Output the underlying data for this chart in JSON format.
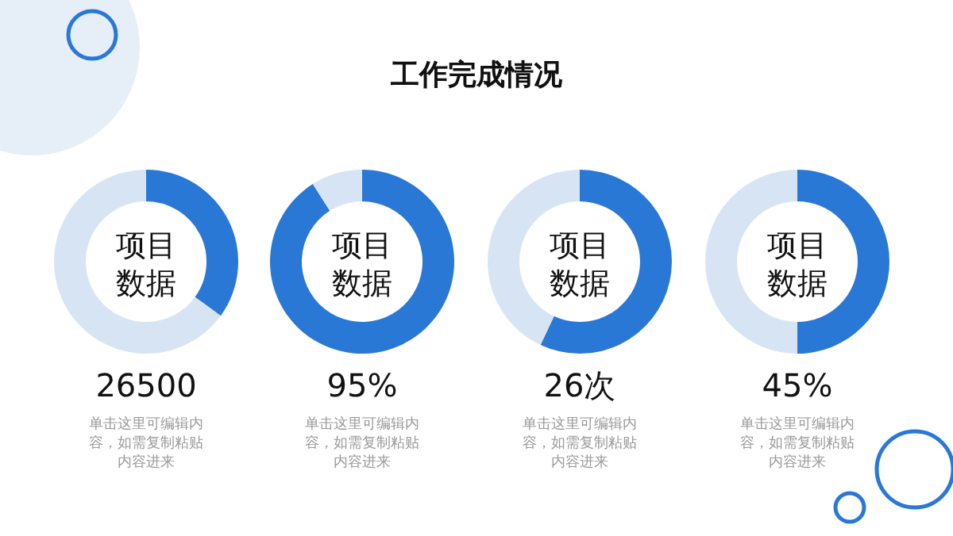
{
  "chart_data": [
    {
      "type": "donut",
      "title": "工作完成情况",
      "subtitle": "项目数据",
      "categories": [
        null,
        null
      ],
      "values": [
        35,
        65
      ],
      "colors": [
        "#2a78d6",
        "#d7e4f4"
      ],
      "annotations": [
        "26500",
        "单击这里可编辑内容，如需复制粘贴内容进来"
      ]
    },
    {
      "type": "donut",
      "subtitle": "项目数据",
      "categories": [
        null,
        null
      ],
      "values": [
        91,
        9
      ],
      "colors": [
        "#2a78d6",
        "#d7e4f4"
      ],
      "annotations": [
        "95%",
        "单击这里可编辑内容，如需复制粘贴内容进来"
      ]
    },
    {
      "type": "donut",
      "subtitle": "项目数据",
      "categories": [
        null,
        null
      ],
      "values": [
        57,
        43
      ],
      "colors": [
        "#2a78d6",
        "#d7e4f4"
      ],
      "annotations": [
        "26次",
        "单击这里可编辑内容，如需复制粘贴内容进来"
      ]
    },
    {
      "type": "donut",
      "subtitle": "项目数据",
      "categories": [
        null,
        null
      ],
      "values": [
        50,
        50
      ],
      "colors": [
        "#2a78d6",
        "#d7e4f4"
      ],
      "annotations": [
        "45%",
        "单击这里可编辑内容，如需复制粘贴内容进来"
      ]
    }
  ]
}
